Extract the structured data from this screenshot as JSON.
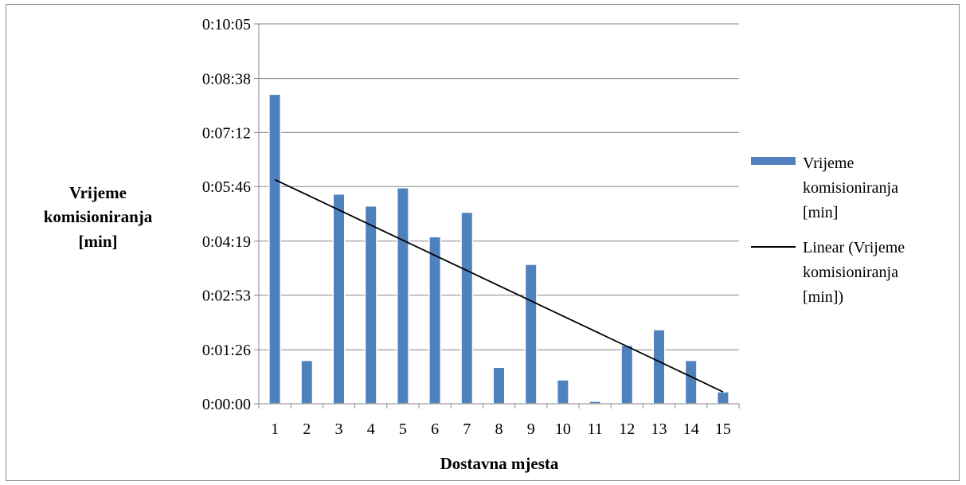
{
  "chart_data": {
    "type": "bar",
    "xlabel": "Dostavna mjesta",
    "ylabel_lines": [
      "Vrijeme",
      "komisioniranja",
      "[min]"
    ],
    "categories": [
      "1",
      "2",
      "3",
      "4",
      "5",
      "6",
      "7",
      "8",
      "9",
      "10",
      "11",
      "12",
      "13",
      "14",
      "15"
    ],
    "y_ticks": [
      "0:00:00",
      "0:01:26",
      "0:02:53",
      "0:04:19",
      "0:05:46",
      "0:07:12",
      "0:08:38",
      "0:10:05"
    ],
    "y_tick_seconds": [
      0,
      86,
      173,
      259,
      346,
      432,
      518,
      605
    ],
    "ylim_seconds": [
      0,
      605
    ],
    "series": [
      {
        "name": "Vrijeme komisioniranja [min]",
        "values_seconds": [
          493,
          69,
          334,
          315,
          344,
          266,
          305,
          58,
          222,
          38,
          4,
          93,
          118,
          69,
          19
        ],
        "color": "#4f81bd"
      }
    ],
    "trendline": {
      "name": "Linear (Vrijeme komisioniranja [min])",
      "type": "linear",
      "start_seconds": 357,
      "end_seconds": 19,
      "color": "#000000"
    },
    "legend": {
      "position": "right",
      "bar_label_lines": [
        "Vrijeme",
        "komisioniranja",
        "[min]"
      ],
      "line_label_lines": [
        "Linear (Vrijeme",
        "komisioniranja",
        "[min])"
      ]
    },
    "grid": true
  }
}
